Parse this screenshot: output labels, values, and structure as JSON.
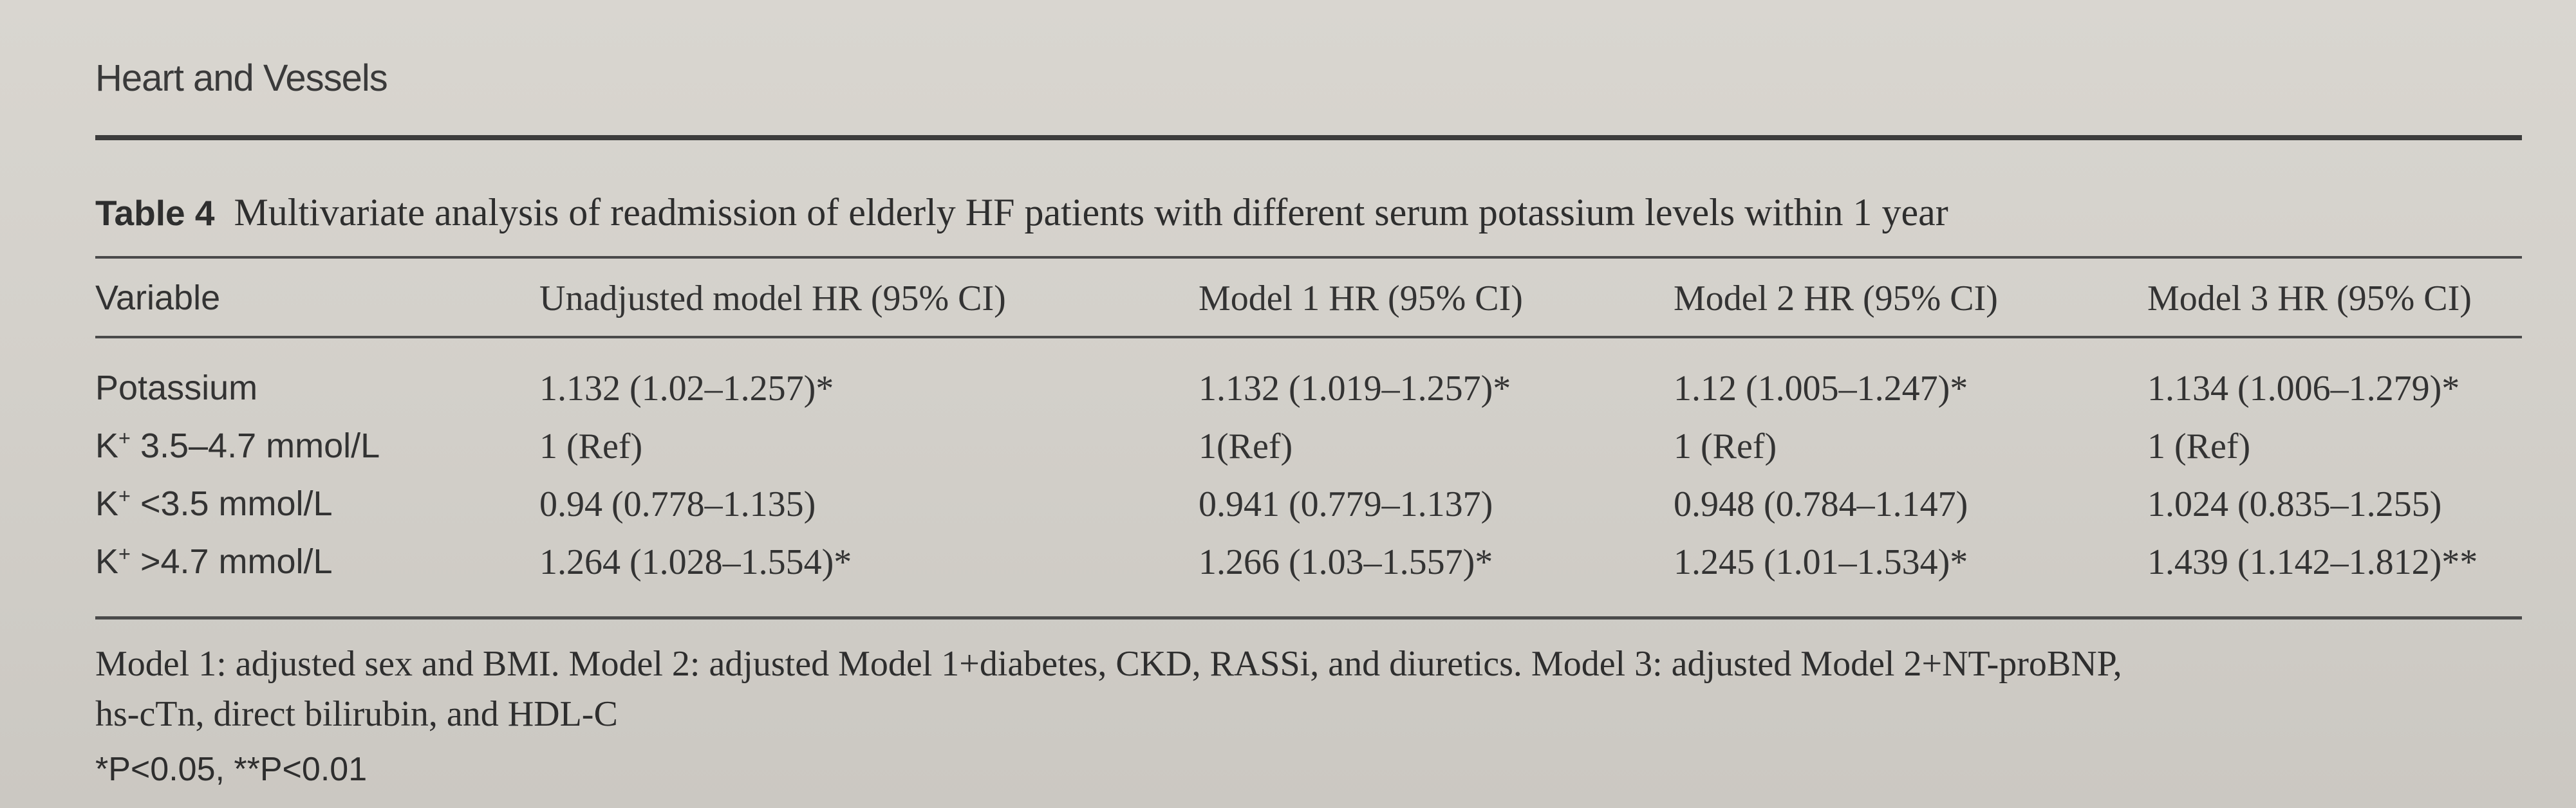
{
  "journal": "Heart and Vessels",
  "table": {
    "label": "Table 4",
    "caption": "Multivariate analysis of readmission of elderly HF patients with different serum potassium levels within 1 year",
    "columns": [
      "Variable",
      "Unadjusted model HR (95% CI)",
      "Model 1 HR (95% CI)",
      "Model 2 HR (95% CI)",
      "Model 3 HR (95% CI)"
    ],
    "rows": [
      {
        "prefix": "Potassium",
        "sup": "",
        "suffix": "",
        "values": [
          "1.132 (1.02–1.257)*",
          "1.132 (1.019–1.257)*",
          "1.12 (1.005–1.247)*",
          "1.134 (1.006–1.279)*"
        ]
      },
      {
        "prefix": "K",
        "sup": "+",
        "suffix": " 3.5–4.7 mmol/L",
        "values": [
          "1 (Ref)",
          "1(Ref)",
          "1 (Ref)",
          "1 (Ref)"
        ]
      },
      {
        "prefix": "K",
        "sup": "+",
        "suffix": " <3.5 mmol/L",
        "values": [
          "0.94 (0.778–1.135)",
          "0.941 (0.779–1.137)",
          "0.948 (0.784–1.147)",
          "1.024 (0.835–1.255)"
        ]
      },
      {
        "prefix": "K",
        "sup": "+",
        "suffix": " >4.7 mmol/L",
        "values": [
          "1.264 (1.028–1.554)*",
          "1.266 (1.03–1.557)*",
          "1.245 (1.01–1.534)*",
          "1.439 (1.142–1.812)**"
        ]
      }
    ],
    "footnotes": {
      "line1": "Model 1: adjusted sex and BMI. Model 2: adjusted Model 1+diabetes, CKD, RASSi, and diuretics. Model 3: adjusted Model 2+NT-proBNP,",
      "line2": "hs-cTn, direct bilirubin, and HDL-C",
      "significance": "*P<0.05, **P<0.01"
    }
  }
}
